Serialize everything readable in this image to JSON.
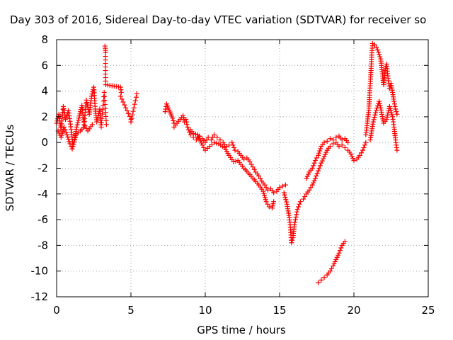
{
  "chart_data": {
    "type": "scatter",
    "title": "Day 303 of 2016, Sidereal Day-to-day VTEC variation (SDTVAR) for receiver so",
    "xlabel": "GPS time / hours",
    "ylabel": "SDTVAR / TECUs",
    "xlim": [
      0,
      25
    ],
    "ylim": [
      -12,
      8
    ],
    "xticks": [
      0,
      5,
      10,
      15,
      20,
      25
    ],
    "yticks": [
      -12,
      -10,
      -8,
      -6,
      -4,
      -2,
      0,
      2,
      4,
      6,
      8
    ],
    "grid": true,
    "marker": "+",
    "color": "#ff0000",
    "trace_segments": [
      {
        "name": "early-morning cluster",
        "points": [
          [
            0.0,
            1.5
          ],
          [
            0.15,
            2.2
          ],
          [
            0.3,
            1.0
          ],
          [
            0.45,
            2.8
          ],
          [
            0.6,
            1.8
          ],
          [
            0.8,
            2.5
          ],
          [
            1.0,
            0.8
          ],
          [
            1.1,
            -0.3
          ],
          [
            1.2,
            0.2
          ],
          [
            1.35,
            1.2
          ],
          [
            1.5,
            1.9
          ],
          [
            1.7,
            2.9
          ],
          [
            1.85,
            1.4
          ],
          [
            2.0,
            3.3
          ],
          [
            2.2,
            2.2
          ],
          [
            2.35,
            3.6
          ],
          [
            2.5,
            4.3
          ],
          [
            2.6,
            2.6
          ],
          [
            2.7,
            1.6
          ],
          [
            2.9,
            2.6
          ],
          [
            3.0,
            1.2
          ],
          [
            3.2,
            3.9
          ],
          [
            3.35,
            1.4
          ]
        ]
      },
      {
        "name": "early-morning lower band",
        "points": [
          [
            0.1,
            0.9
          ],
          [
            0.3,
            0.4
          ],
          [
            0.5,
            1.2
          ],
          [
            0.7,
            0.6
          ],
          [
            0.9,
            -0.1
          ],
          [
            1.05,
            -0.5
          ],
          [
            1.3,
            0.6
          ],
          [
            1.6,
            0.9
          ],
          [
            1.9,
            1.3
          ],
          [
            2.1,
            0.9
          ],
          [
            2.4,
            1.4
          ]
        ]
      },
      {
        "name": "isolated high points",
        "points": [
          [
            3.25,
            7.5
          ],
          [
            3.3,
            7.0
          ],
          [
            3.28,
            6.7
          ],
          [
            3.3,
            4.5
          ],
          [
            4.3,
            4.3
          ],
          [
            4.35,
            3.9
          ],
          [
            4.3,
            3.6
          ],
          [
            5.0,
            1.8
          ],
          [
            5.0,
            1.6
          ],
          [
            5.4,
            3.8
          ]
        ]
      },
      {
        "name": "mid-morning trace",
        "points": [
          [
            7.3,
            2.4
          ],
          [
            7.4,
            3.0
          ],
          [
            7.8,
            1.9
          ],
          [
            7.9,
            1.5
          ],
          [
            7.9,
            1.2
          ],
          [
            8.5,
            2.1
          ],
          [
            8.6,
            1.6
          ],
          [
            8.7,
            1.8
          ],
          [
            8.8,
            1.2
          ],
          [
            9.0,
            0.6
          ],
          [
            9.2,
            0.4
          ],
          [
            9.4,
            0.2
          ],
          [
            9.6,
            0.5
          ],
          [
            9.8,
            0.3
          ],
          [
            10.0,
            0.0
          ],
          [
            10.2,
            0.4
          ],
          [
            10.4,
            0.2
          ],
          [
            10.6,
            0.6
          ],
          [
            10.8,
            0.4
          ],
          [
            11.0,
            0.2
          ],
          [
            11.2,
            0.0
          ],
          [
            11.4,
            -0.3
          ],
          [
            11.6,
            -0.2
          ],
          [
            11.8,
            0.0
          ],
          [
            12.0,
            -0.6
          ],
          [
            12.2,
            -0.7
          ],
          [
            12.4,
            -1.0
          ],
          [
            12.6,
            -1.3
          ],
          [
            12.8,
            -1.2
          ],
          [
            13.0,
            -1.5
          ],
          [
            13.2,
            -1.9
          ],
          [
            13.4,
            -2.3
          ],
          [
            13.6,
            -2.6
          ],
          [
            13.8,
            -3.0
          ],
          [
            14.0,
            -3.3
          ],
          [
            14.2,
            -3.7
          ],
          [
            14.4,
            -3.6
          ],
          [
            14.6,
            -3.9
          ],
          [
            14.8,
            -3.8
          ],
          [
            15.0,
            -3.5
          ],
          [
            15.2,
            -3.4
          ],
          [
            15.4,
            -3.3
          ]
        ]
      },
      {
        "name": "mid-morning lower trace",
        "points": [
          [
            9.0,
            1.0
          ],
          [
            9.2,
            0.7
          ],
          [
            9.5,
            0.6
          ],
          [
            9.8,
            -0.2
          ],
          [
            10.0,
            -0.6
          ],
          [
            10.3,
            -0.3
          ],
          [
            10.6,
            0.0
          ],
          [
            10.9,
            -0.1
          ],
          [
            11.3,
            -0.4
          ],
          [
            11.6,
            -1.0
          ],
          [
            11.9,
            -1.5
          ],
          [
            12.2,
            -1.4
          ],
          [
            12.6,
            -2.0
          ],
          [
            13.0,
            -2.5
          ],
          [
            13.3,
            -2.9
          ],
          [
            13.6,
            -3.3
          ],
          [
            13.9,
            -3.8
          ],
          [
            14.1,
            -4.6
          ],
          [
            14.3,
            -5.0
          ],
          [
            14.5,
            -5.1
          ],
          [
            14.6,
            -4.6
          ]
        ]
      },
      {
        "name": "afternoon dip",
        "points": [
          [
            15.3,
            -3.9
          ],
          [
            15.5,
            -4.8
          ],
          [
            15.6,
            -5.5
          ],
          [
            15.7,
            -6.2
          ],
          [
            15.75,
            -7.0
          ],
          [
            15.8,
            -7.8
          ],
          [
            15.9,
            -7.4
          ],
          [
            16.0,
            -6.4
          ],
          [
            16.1,
            -5.8
          ],
          [
            16.2,
            -5.2
          ],
          [
            16.4,
            -4.6
          ],
          [
            16.6,
            -4.4
          ],
          [
            16.8,
            -4.0
          ],
          [
            17.0,
            -3.7
          ],
          [
            17.2,
            -3.3
          ],
          [
            17.4,
            -2.8
          ],
          [
            17.6,
            -2.2
          ],
          [
            17.8,
            -1.6
          ],
          [
            18.0,
            -1.1
          ],
          [
            18.2,
            -0.6
          ],
          [
            18.4,
            -0.3
          ],
          [
            18.6,
            -0.1
          ],
          [
            18.8,
            0.0
          ],
          [
            19.0,
            -0.3
          ],
          [
            19.2,
            -0.2
          ],
          [
            19.4,
            -0.4
          ],
          [
            19.6,
            -0.6
          ],
          [
            19.8,
            -0.9
          ],
          [
            20.0,
            -1.4
          ],
          [
            20.2,
            -1.3
          ],
          [
            20.4,
            -1.0
          ],
          [
            20.6,
            -0.6
          ],
          [
            20.8,
            0.0
          ]
        ]
      },
      {
        "name": "afternoon upper branch",
        "points": [
          [
            16.8,
            -2.8
          ],
          [
            17.0,
            -2.3
          ],
          [
            17.2,
            -2.0
          ],
          [
            17.4,
            -1.4
          ],
          [
            17.6,
            -1.0
          ],
          [
            17.8,
            -0.3
          ],
          [
            18.0,
            0.0
          ],
          [
            18.2,
            0.1
          ],
          [
            18.4,
            0.3
          ],
          [
            18.6,
            0.2
          ],
          [
            18.8,
            0.4
          ],
          [
            19.0,
            0.5
          ],
          [
            19.2,
            0.2
          ],
          [
            19.4,
            0.3
          ],
          [
            19.6,
            0.0
          ]
        ]
      },
      {
        "name": "isolated low arc",
        "points": [
          [
            17.6,
            -10.9
          ],
          [
            17.8,
            -10.7
          ],
          [
            18.0,
            -10.5
          ],
          [
            18.2,
            -10.3
          ],
          [
            18.4,
            -10.0
          ],
          [
            18.6,
            -9.6
          ],
          [
            18.8,
            -9.1
          ],
          [
            19.0,
            -8.6
          ],
          [
            19.2,
            -8.0
          ],
          [
            19.4,
            -7.7
          ]
        ]
      },
      {
        "name": "evening rise",
        "points": [
          [
            20.8,
            0.6
          ],
          [
            20.9,
            1.5
          ],
          [
            21.0,
            2.5
          ],
          [
            21.05,
            3.5
          ],
          [
            21.1,
            4.6
          ],
          [
            21.15,
            5.6
          ],
          [
            21.2,
            6.8
          ],
          [
            21.25,
            7.7
          ],
          [
            21.4,
            7.6
          ],
          [
            21.6,
            7.2
          ],
          [
            21.8,
            6.5
          ],
          [
            21.9,
            5.5
          ],
          [
            22.0,
            4.5
          ],
          [
            22.1,
            5.6
          ],
          [
            22.2,
            6.1
          ],
          [
            22.3,
            5.0
          ],
          [
            22.4,
            4.2
          ],
          [
            22.5,
            4.6
          ],
          [
            22.6,
            3.9
          ],
          [
            22.7,
            3.2
          ],
          [
            22.8,
            2.6
          ],
          [
            22.9,
            2.2
          ]
        ]
      },
      {
        "name": "evening lower branch",
        "points": [
          [
            21.1,
            0.2
          ],
          [
            21.3,
            1.6
          ],
          [
            21.5,
            2.5
          ],
          [
            21.7,
            3.2
          ],
          [
            21.8,
            2.7
          ],
          [
            22.0,
            1.5
          ],
          [
            22.2,
            1.8
          ],
          [
            22.4,
            2.8
          ],
          [
            22.6,
            2.0
          ],
          [
            22.7,
            1.2
          ],
          [
            22.8,
            0.2
          ],
          [
            22.9,
            -0.6
          ]
        ]
      }
    ]
  }
}
